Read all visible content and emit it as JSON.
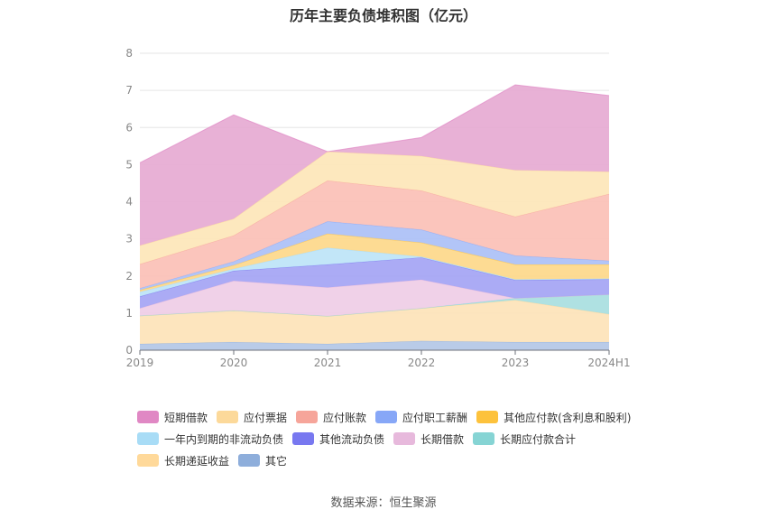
{
  "chart_data": {
    "type": "area",
    "stacked": true,
    "title": "历年主要负债堆积图（亿元）",
    "categories": [
      "2019",
      "2020",
      "2021",
      "2022",
      "2023",
      "2024H1"
    ],
    "ylim": [
      0,
      8
    ],
    "yticks": [
      "0",
      "1",
      "2",
      "3",
      "4",
      "5",
      "6",
      "7",
      "8"
    ],
    "grid": true,
    "legend_position": "bottom",
    "series": [
      {
        "name": "其它",
        "color": "#8eaedb",
        "fill": "#b3c7e6",
        "values": [
          0.17,
          0.22,
          0.17,
          0.25,
          0.22,
          0.22
        ]
      },
      {
        "name": "长期递延收益",
        "color": "#ffd99a",
        "fill": "#fde3b8",
        "values": [
          0.76,
          0.85,
          0.75,
          0.88,
          1.13,
          0.75
        ]
      },
      {
        "name": "长期应付款合计",
        "color": "#86d4d4",
        "fill": "#a8dedf",
        "values": [
          0,
          0,
          0,
          0,
          0.05,
          0.53
        ]
      },
      {
        "name": "长期借款",
        "color": "#e7b9dc",
        "fill": "#efcde6",
        "values": [
          0.2,
          0.8,
          0.77,
          0.77,
          0,
          0
        ]
      },
      {
        "name": "其他流动负债",
        "color": "#7878f0",
        "fill": "#a4a4f4",
        "values": [
          0.32,
          0.27,
          0.62,
          0.6,
          0.49,
          0.41
        ]
      },
      {
        "name": "一年内到期的非流动负债",
        "color": "#a8dcf6",
        "fill": "#bde4f7",
        "values": [
          0.12,
          0.05,
          0.45,
          0.02,
          0.02,
          0.02
        ]
      },
      {
        "name": "其他应付款(含利息和股利)",
        "color": "#fdc23c",
        "fill": "#fdd88a",
        "values": [
          0.05,
          0.1,
          0.38,
          0.38,
          0.4,
          0.38
        ]
      },
      {
        "name": "应付职工薪酬",
        "color": "#87a7f7",
        "fill": "#abc0f6",
        "values": [
          0.05,
          0.1,
          0.33,
          0.35,
          0.24,
          0.1
        ]
      },
      {
        "name": "应付账款",
        "color": "#f6a59a",
        "fill": "#fbc0b6",
        "values": [
          0.65,
          0.7,
          1.1,
          1.05,
          1.05,
          1.8
        ]
      },
      {
        "name": "应付票据",
        "color": "#fcd99a",
        "fill": "#fde6b8",
        "values": [
          0.5,
          0.45,
          0.78,
          0.93,
          1.25,
          0.6
        ]
      },
      {
        "name": "短期借款",
        "color": "#e088c4",
        "fill": "#e6aad2",
        "values": [
          2.23,
          2.8,
          0,
          0.5,
          2.3,
          2.05
        ]
      }
    ]
  },
  "legend_rows": [
    [
      {
        "label": "短期借款",
        "color": "#e088c4"
      },
      {
        "label": "应付票据",
        "color": "#fcd99a"
      },
      {
        "label": "应付账款",
        "color": "#f6a59a"
      },
      {
        "label": "应付职工薪酬",
        "color": "#87a7f7"
      },
      {
        "label": "其他应付款(含利息和股利)",
        "color": "#fdc23c"
      }
    ],
    [
      {
        "label": "一年内到期的非流动负债",
        "color": "#a8dcf6"
      },
      {
        "label": "其他流动负债",
        "color": "#7878f0"
      },
      {
        "label": "长期借款",
        "color": "#e7b9dc"
      },
      {
        "label": "长期应付款合计",
        "color": "#86d4d4"
      }
    ],
    [
      {
        "label": "长期递延收益",
        "color": "#ffd99a"
      },
      {
        "label": "其它",
        "color": "#8eaedb"
      }
    ]
  ],
  "source_note": "数据来源：恒生聚源"
}
